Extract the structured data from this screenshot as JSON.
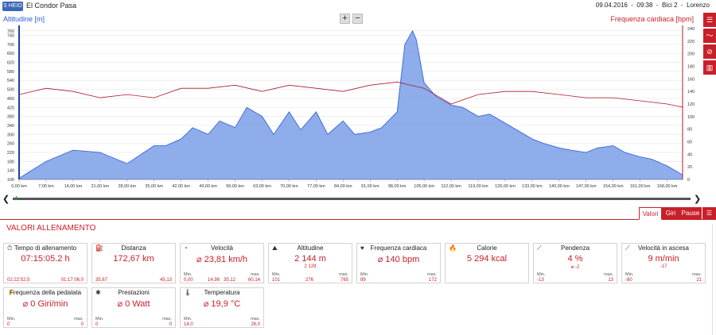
{
  "header": {
    "logo_text": "S HEIO",
    "title": "El Condor Pasa",
    "session_info": "09.04.2016  -  09:38  -  Bici 2  -  Lorenzo"
  },
  "chart": {
    "left_axis_label": "Altitudine [m]",
    "right_axis_label": "Frequenza cardiaca [bpm]",
    "zoom_in": "+",
    "zoom_out": "−",
    "left_ticks": [
      "760",
      "740",
      "700",
      "660",
      "620",
      "580",
      "540",
      "500",
      "460",
      "420",
      "380",
      "340",
      "300",
      "260",
      "220",
      "180",
      "140",
      "100"
    ],
    "right_ticks": [
      "240",
      "220",
      "200",
      "180",
      "160",
      "140",
      "120",
      "100",
      "80",
      "60",
      "40",
      "20",
      "0"
    ],
    "x_ticks": [
      "0,00 km",
      "7,00 km",
      "14,00 km",
      "21,00 km",
      "28,00 km",
      "35,00 km",
      "42,00 km",
      "49,00 km",
      "56,00 km",
      "63,00 km",
      "70,00 km",
      "77,00 km",
      "84,00 km",
      "91,00 km",
      "98,00 km",
      "105,00 km",
      "112,00 km",
      "119,00 km",
      "126,00 km",
      "133,00 km",
      "140,00 km",
      "147,00 km",
      "154,00 km",
      "161,00 km",
      "168,00 km"
    ],
    "colors": {
      "altitude": "#2a5bd7",
      "heart_rate": "#b0182a",
      "speed": "#2e8b2e",
      "accent": "#c8202a"
    },
    "side_tools": [
      "menu-icon",
      "line-chart-icon",
      "no-icon",
      "bar-chart-icon"
    ]
  },
  "chart_data": {
    "type": "area",
    "xlabel": "",
    "ylabel": "Altitudine [m]",
    "ylim": [
      100,
      770
    ],
    "ylim_right": [
      0,
      240
    ],
    "series": [
      {
        "name": "Altitudine [m]",
        "x": [
          0,
          7,
          14,
          21,
          28,
          35,
          38,
          42,
          45,
          49,
          52,
          56,
          59,
          63,
          66,
          70,
          73,
          77,
          80,
          84,
          87,
          91,
          94,
          98,
          100,
          102,
          103,
          105,
          108,
          112,
          115,
          119,
          122,
          126,
          129,
          133,
          136,
          140,
          143,
          147,
          150,
          154,
          157,
          161,
          164,
          168,
          172
        ],
        "values": [
          105,
          180,
          230,
          220,
          170,
          250,
          250,
          280,
          330,
          300,
          360,
          330,
          420,
          380,
          300,
          400,
          320,
          400,
          300,
          360,
          300,
          310,
          330,
          400,
          700,
          760,
          720,
          530,
          470,
          430,
          420,
          380,
          390,
          350,
          320,
          280,
          260,
          240,
          230,
          220,
          240,
          250,
          220,
          200,
          190,
          160,
          120
        ]
      },
      {
        "name": "Frequenza cardiaca [bpm]",
        "x": [
          0,
          7,
          14,
          21,
          28,
          35,
          42,
          49,
          56,
          63,
          70,
          77,
          84,
          91,
          98,
          105,
          112,
          119,
          126,
          133,
          140,
          147,
          154,
          161,
          168,
          172
        ],
        "values": [
          135,
          145,
          140,
          130,
          135,
          130,
          145,
          145,
          150,
          140,
          150,
          145,
          140,
          150,
          155,
          145,
          120,
          135,
          140,
          140,
          135,
          130,
          130,
          125,
          120,
          115
        ]
      }
    ]
  },
  "scroller": {
    "left_arrow": "❮",
    "right_arrow": "❯"
  },
  "tabs": {
    "items": [
      "Valori",
      "Giri",
      "Pause"
    ]
  },
  "section": {
    "title": "VALORI ALLENAMENTO"
  },
  "cards": [
    {
      "title": "Tempo di allenamento",
      "icon": "⏱",
      "value": "07:15:05.2 h",
      "sub": "",
      "min_label": "",
      "min": "02:22:52,5",
      "max_label": "",
      "max": "01:17:06,0"
    },
    {
      "title": "Distanza",
      "icon": "⛽",
      "value": "172,67 km",
      "sub": "",
      "min_label": "",
      "min": "35,67",
      "max_label": "",
      "max": "45,13"
    },
    {
      "title": "Velocità",
      "icon": "◔",
      "value": "⌀ 23,81 km/h",
      "sub": "",
      "min_label": "Min.",
      "min": "0,00",
      "mid1": "14,98",
      "mid2": "35,12",
      "max_label": "max.",
      "max": "60,14"
    },
    {
      "title": "Altitudine",
      "icon": "⛰",
      "value": "2 144 m",
      "sub": "2 129",
      "min_label": "Min.",
      "min": "101",
      "mid1": "276",
      "max_label": "max.",
      "max": "765"
    },
    {
      "title": "Frequenza cardiaca",
      "icon": "♥",
      "value": "⌀ 140 bpm",
      "sub": "",
      "min_label": "Min.",
      "min": "89",
      "max_label": "max.",
      "max": "172"
    },
    {
      "title": "Calorie",
      "icon": "🔥",
      "value": "5 294 kcal",
      "sub": "",
      "min_label": "",
      "min": "",
      "max_label": "",
      "max": ""
    },
    {
      "title": "Pendenza",
      "icon": "⟋",
      "value": "4 %",
      "sub": "⌀ -2",
      "min_label": "Min.",
      "min": "-13",
      "max_label": "max.",
      "max": "13"
    },
    {
      "title": "Velocità in ascesa",
      "icon": "⟋",
      "value": "9 m/min",
      "sub": "-17",
      "min_label": "Min.",
      "min": "-80",
      "max_label": "max.",
      "max": "21"
    },
    {
      "title": "Frequenza della pedalata",
      "icon": "⚡",
      "value": "⌀ 0 Giri/min",
      "sub": "",
      "min_label": "Min.",
      "min": "0",
      "max_label": "max.",
      "max": "0"
    },
    {
      "title": "Prestazioni",
      "icon": "✱",
      "value": "⌀ 0 Watt",
      "sub": "",
      "min_label": "Min.",
      "min": "0",
      "max_label": "max.",
      "max": "0"
    },
    {
      "title": "Temperatura",
      "icon": "🌡",
      "value": "⌀ 19,9 °C",
      "sub": "",
      "min_label": "Min.",
      "min": "14,0",
      "max_label": "max.",
      "max": "26,0"
    }
  ]
}
